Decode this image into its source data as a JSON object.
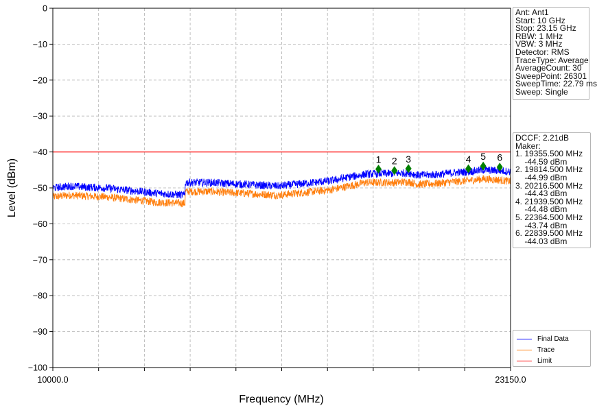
{
  "chart_data": {
    "type": "line",
    "xlabel": "Frequency (MHz)",
    "ylabel": "Level (dBm)",
    "xlim": [
      10000.0,
      23150.0
    ],
    "ylim": [
      -100,
      0
    ],
    "x_tick_labels": [
      "10000.0",
      "23150.0"
    ],
    "x_tick_count": 11,
    "y_ticks": [
      0,
      -10,
      -20,
      -30,
      -40,
      -50,
      -60,
      -70,
      -80,
      -90,
      -100
    ],
    "grid": true,
    "legend_position": "bottom-right",
    "limit": -40,
    "series": [
      {
        "name": "Final Data",
        "color": "#0000ff",
        "x": [
          10000,
          10500,
          11000,
          11500,
          12000,
          12500,
          13000,
          13800,
          13801,
          14500,
          15000,
          15500,
          16000,
          16500,
          17000,
          17500,
          18000,
          18500,
          19000,
          19355,
          19814,
          20216,
          20500,
          21000,
          21500,
          21939,
          22364,
          22839,
          23150
        ],
        "y": [
          -50.0,
          -49.5,
          -49.8,
          -50.0,
          -50.5,
          -51.0,
          -51.5,
          -52.0,
          -48.5,
          -48.5,
          -48.8,
          -49.0,
          -49.3,
          -49.5,
          -49.0,
          -48.5,
          -48.0,
          -47.0,
          -46.2,
          -46.0,
          -46.0,
          -45.8,
          -46.5,
          -46.3,
          -45.8,
          -45.5,
          -45.0,
          -45.2,
          -45.5
        ]
      },
      {
        "name": "Trace",
        "color": "#ff7f0e",
        "x": [
          10000,
          10500,
          11000,
          11500,
          12000,
          12500,
          13000,
          13800,
          13801,
          14500,
          15000,
          15500,
          16000,
          16500,
          17000,
          17500,
          18000,
          18500,
          19000,
          19355,
          19814,
          20216,
          20500,
          21000,
          21500,
          21939,
          22364,
          22839,
          23150
        ],
        "y": [
          -52.5,
          -52.0,
          -52.3,
          -52.5,
          -53.0,
          -53.5,
          -54.0,
          -54.3,
          -51.0,
          -51.0,
          -51.3,
          -51.5,
          -51.8,
          -52.0,
          -51.5,
          -51.0,
          -50.5,
          -49.5,
          -48.5,
          -48.5,
          -48.5,
          -48.3,
          -49.0,
          -48.8,
          -48.3,
          -48.0,
          -47.5,
          -47.8,
          -48.2
        ]
      },
      {
        "name": "Limit",
        "color": "#ff0000",
        "x": [
          10000,
          23150
        ],
        "y": [
          -40,
          -40
        ]
      }
    ],
    "markers": [
      {
        "label": "1",
        "freq": 19355.5,
        "level": -44.59
      },
      {
        "label": "2",
        "freq": 19814.5,
        "level": -44.99
      },
      {
        "label": "3",
        "freq": 20216.5,
        "level": -44.43
      },
      {
        "label": "4",
        "freq": 21939.5,
        "level": -44.48
      },
      {
        "label": "5",
        "freq": 22364.5,
        "level": -43.74
      },
      {
        "label": "6",
        "freq": 22839.5,
        "level": -44.03
      }
    ],
    "marker_color": "#008000"
  },
  "info": {
    "lines": [
      "Ant: Ant1",
      "Start: 10 GHz",
      "Stop: 23.15 GHz",
      "RBW: 1 MHz",
      "VBW: 3 MHz",
      "Detector: RMS",
      "TraceType: Average",
      "AverageCount: 30",
      "SweepPoint: 26301",
      "SweepTime: 22.79 ms",
      "Sweep: Single"
    ]
  },
  "marker_table": {
    "lines": [
      "DCCF: 2.21dB",
      "Maker:",
      "1. 19355.500 MHz",
      "    -44.59 dBm",
      "2. 19814.500 MHz",
      "    -44.99 dBm",
      "3. 20216.500 MHz",
      "    -44.43 dBm",
      "4. 21939.500 MHz",
      "    -44.48 dBm",
      "5. 22364.500 MHz",
      "    -43.74 dBm",
      "6. 22839.500 MHz",
      "    -44.03 dBm"
    ]
  },
  "legend": {
    "items": [
      {
        "label": "Final Data",
        "color": "#0000ff"
      },
      {
        "label": "Trace",
        "color": "#ff7f0e"
      },
      {
        "label": "Limit",
        "color": "#ff0000"
      }
    ]
  }
}
